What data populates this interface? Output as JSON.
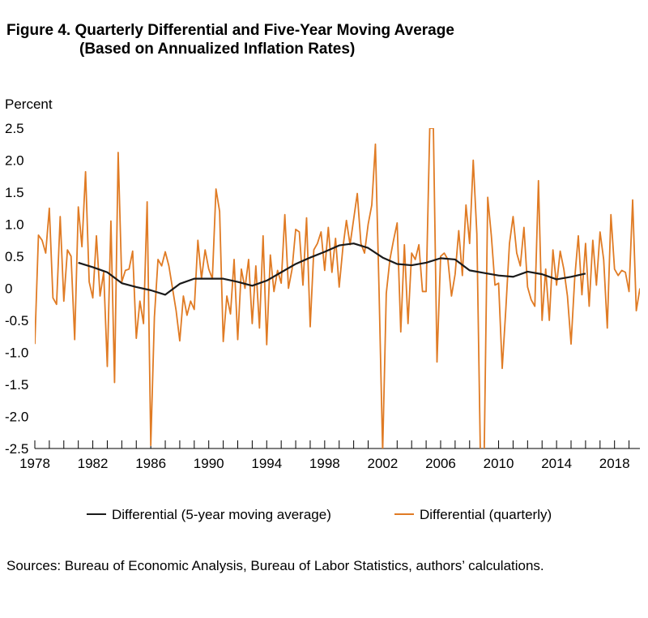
{
  "header": {
    "title_line1": "Figure 4. Quarterly Differential and Five-Year Moving Average",
    "title_line2": "(Based on Annualized Inflation Rates)"
  },
  "source_text": "Sources: Bureau of Economic Analysis, Bureau of Labor Statistics, authors’ calculations.",
  "colors": {
    "moving_average": "#1a1a1a",
    "quarterly": "#e07b24"
  },
  "chart_data": {
    "type": "line",
    "ylabel": "Percent",
    "xlabel": "",
    "xlim": [
      1978.0,
      2019.75
    ],
    "ylim": [
      -2.5,
      2.5
    ],
    "y_ticks": [
      2.5,
      2.0,
      1.5,
      1.0,
      0.5,
      0,
      -0.5,
      -1.0,
      -1.5,
      -2.0,
      -2.5
    ],
    "y_tick_labels": [
      "2.5",
      "2.0",
      "1.5",
      "1.0",
      "0.5",
      "0",
      "-0.5",
      "-1.0",
      "-1.5",
      "-2.0",
      "-2.5"
    ],
    "x_tick_labels": [
      "1978",
      "1982",
      "1986",
      "1990",
      "1994",
      "1998",
      "2002",
      "2006",
      "2010",
      "2014",
      "2018"
    ],
    "x_tick_values": [
      1978,
      1982,
      1986,
      1990,
      1994,
      1998,
      2002,
      2006,
      2010,
      2014,
      2018
    ],
    "grid": false,
    "legend_position": "bottom",
    "series": [
      {
        "name": "Differential (5-year moving average)",
        "x": [
          1981.0,
          1982.0,
          1983.0,
          1984.0,
          1985.0,
          1986.0,
          1987.0,
          1988.0,
          1989.0,
          1990.0,
          1991.0,
          1992.0,
          1993.0,
          1994.0,
          1995.0,
          1996.0,
          1997.0,
          1998.0,
          1999.0,
          2000.0,
          2001.0,
          2002.0,
          2003.0,
          2004.0,
          2005.0,
          2006.0,
          2007.0,
          2008.0,
          2009.0,
          2010.0,
          2011.0,
          2012.0,
          2013.0,
          2014.0,
          2015.0,
          2016.0
        ],
        "values": [
          0.4,
          0.33,
          0.25,
          0.08,
          0.02,
          -0.03,
          -0.1,
          0.07,
          0.15,
          0.15,
          0.15,
          0.1,
          0.04,
          0.12,
          0.25,
          0.38,
          0.48,
          0.57,
          0.67,
          0.7,
          0.63,
          0.48,
          0.38,
          0.36,
          0.4,
          0.47,
          0.45,
          0.28,
          0.24,
          0.2,
          0.18,
          0.26,
          0.22,
          0.14,
          0.18,
          0.23
        ]
      },
      {
        "name": "Differential (quarterly)",
        "x": [
          1978.0,
          1978.25,
          1978.5,
          1978.75,
          1979.0,
          1979.25,
          1979.5,
          1979.75,
          1980.0,
          1980.25,
          1980.5,
          1980.75,
          1981.0,
          1981.25,
          1981.5,
          1981.75,
          1982.0,
          1982.25,
          1982.5,
          1982.75,
          1983.0,
          1983.25,
          1983.5,
          1983.75,
          1984.0,
          1984.25,
          1984.5,
          1984.75,
          1985.0,
          1985.25,
          1985.5,
          1985.75,
          1986.0,
          1986.25,
          1986.5,
          1986.75,
          1987.0,
          1987.25,
          1987.5,
          1987.75,
          1988.0,
          1988.25,
          1988.5,
          1988.75,
          1989.0,
          1989.25,
          1989.5,
          1989.75,
          1990.0,
          1990.25,
          1990.5,
          1990.75,
          1991.0,
          1991.25,
          1991.5,
          1991.75,
          1992.0,
          1992.25,
          1992.5,
          1992.75,
          1993.0,
          1993.25,
          1993.5,
          1993.75,
          1994.0,
          1994.25,
          1994.5,
          1994.75,
          1995.0,
          1995.25,
          1995.5,
          1995.75,
          1996.0,
          1996.25,
          1996.5,
          1996.75,
          1997.0,
          1997.25,
          1997.5,
          1997.75,
          1998.0,
          1998.25,
          1998.5,
          1998.75,
          1999.0,
          1999.25,
          1999.5,
          1999.75,
          2000.0,
          2000.25,
          2000.5,
          2000.75,
          2001.0,
          2001.25,
          2001.5,
          2001.75,
          2002.0,
          2002.25,
          2002.5,
          2002.75,
          2003.0,
          2003.25,
          2003.5,
          2003.75,
          2004.0,
          2004.25,
          2004.5,
          2004.75,
          2005.0,
          2005.25,
          2005.5,
          2005.75,
          2006.0,
          2006.25,
          2006.5,
          2006.75,
          2007.0,
          2007.25,
          2007.5,
          2007.75,
          2008.0,
          2008.25,
          2008.5,
          2008.75,
          2009.0,
          2009.25,
          2009.5,
          2009.75,
          2010.0,
          2010.25,
          2010.5,
          2010.75,
          2011.0,
          2011.25,
          2011.5,
          2011.75,
          2012.0,
          2012.25,
          2012.5,
          2012.75,
          2013.0,
          2013.25,
          2013.5,
          2013.75,
          2014.0,
          2014.25,
          2014.5,
          2014.75,
          2015.0,
          2015.25,
          2015.5,
          2015.75,
          2016.0,
          2016.25,
          2016.5,
          2016.75,
          2017.0,
          2017.25,
          2017.5,
          2017.75,
          2018.0,
          2018.25,
          2018.5,
          2018.75,
          2019.0,
          2019.25,
          2019.5,
          2019.75
        ],
        "values": [
          -0.87,
          0.83,
          0.75,
          0.55,
          1.25,
          -0.15,
          -0.25,
          1.12,
          -0.2,
          0.6,
          0.5,
          -0.8,
          1.27,
          0.65,
          1.82,
          0.1,
          -0.15,
          0.82,
          -0.12,
          0.25,
          -1.22,
          1.05,
          -1.47,
          2.12,
          0.1,
          0.28,
          0.3,
          0.58,
          -0.78,
          -0.2,
          -0.55,
          1.35,
          -2.45,
          -0.45,
          0.45,
          0.35,
          0.57,
          0.35,
          0.0,
          -0.35,
          -0.82,
          -0.12,
          -0.42,
          -0.2,
          -0.33,
          0.75,
          0.15,
          0.6,
          0.3,
          0.15,
          1.55,
          1.2,
          -0.83,
          -0.12,
          -0.4,
          0.45,
          -0.8,
          0.3,
          0.0,
          0.45,
          -0.55,
          0.35,
          -0.62,
          0.82,
          -0.88,
          0.52,
          -0.05,
          0.28,
          0.08,
          1.15,
          0.0,
          0.3,
          0.92,
          0.88,
          0.05,
          1.1,
          -0.6,
          0.6,
          0.7,
          0.88,
          0.28,
          0.95,
          0.25,
          0.78,
          0.02,
          0.62,
          1.06,
          0.68,
          1.08,
          1.48,
          0.7,
          0.55,
          1.0,
          1.3,
          2.25,
          -0.02,
          -2.55,
          -0.08,
          0.45,
          0.75,
          1.02,
          -0.68,
          0.68,
          -0.55,
          0.55,
          0.45,
          0.68,
          -0.05,
          -0.05,
          2.5,
          2.5,
          -1.15,
          0.5,
          0.55,
          0.45,
          -0.12,
          0.22,
          0.9,
          0.2,
          1.3,
          0.7,
          2.0,
          0.85,
          -2.7,
          -2.7,
          1.42,
          0.82,
          0.05,
          0.08,
          -1.25,
          -0.32,
          0.7,
          1.12,
          0.55,
          0.35,
          0.95,
          0.02,
          -0.18,
          -0.28,
          1.68,
          -0.5,
          0.3,
          -0.5,
          0.6,
          0.05,
          0.58,
          0.3,
          -0.12,
          -0.87,
          0.15,
          0.82,
          -0.1,
          0.7,
          -0.28,
          0.75,
          0.05,
          0.88,
          0.45,
          -0.62,
          1.15,
          0.3,
          0.2,
          0.28,
          0.25,
          -0.05,
          1.38,
          -0.35,
          0.0
        ]
      }
    ]
  }
}
